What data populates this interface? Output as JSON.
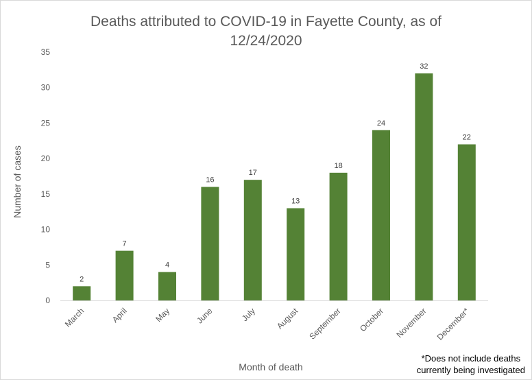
{
  "chart_data": {
    "type": "bar",
    "title_line1": "Deaths attributed to COVID-19 in Fayette County, as of",
    "title_line2": "12/24/2020",
    "xlabel": "Month  of death",
    "ylabel": "Number  of cases",
    "categories": [
      "March",
      "April",
      "May",
      "June",
      "July",
      "August",
      "September",
      "October",
      "November",
      "December*"
    ],
    "values": [
      2,
      7,
      4,
      16,
      17,
      13,
      18,
      24,
      32,
      22
    ],
    "ylim": [
      0,
      35
    ],
    "yticks": [
      0,
      5,
      10,
      15,
      20,
      25,
      30,
      35
    ],
    "grid": false,
    "bar_color": "#548235",
    "data_labels": true
  },
  "footnote": {
    "line1": "*Does not include deaths",
    "line2": "currently being investigated"
  }
}
